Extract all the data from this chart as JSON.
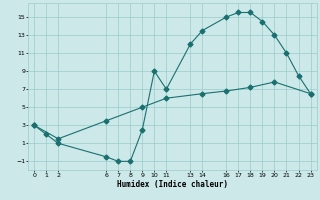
{
  "xlabel": "Humidex (Indice chaleur)",
  "bg_color": "#cce8e8",
  "grid_color": "#99cccc",
  "line_color": "#1a7070",
  "xlim": [
    -0.5,
    23.5
  ],
  "ylim": [
    -2.0,
    16.5
  ],
  "xticks": [
    0,
    1,
    2,
    6,
    7,
    8,
    9,
    10,
    11,
    13,
    14,
    16,
    17,
    18,
    19,
    20,
    21,
    22,
    23
  ],
  "yticks": [
    -1,
    1,
    3,
    5,
    7,
    9,
    11,
    13,
    15
  ],
  "line1_x": [
    0,
    1,
    2,
    6,
    7,
    8,
    9,
    10,
    11,
    13,
    14,
    16,
    17,
    18,
    19,
    20,
    21,
    22,
    23
  ],
  "line1_y": [
    3.0,
    2.0,
    1.0,
    -0.5,
    -1.0,
    -1.0,
    2.5,
    9.0,
    7.0,
    12.0,
    13.5,
    15.0,
    15.5,
    15.5,
    14.5,
    13.0,
    11.0,
    8.5,
    6.5
  ],
  "line2_x": [
    0,
    2,
    6,
    9,
    11,
    14,
    16,
    18,
    20,
    23
  ],
  "line2_y": [
    3.0,
    1.5,
    3.5,
    5.0,
    6.0,
    6.5,
    6.8,
    7.2,
    7.8,
    6.5
  ],
  "marker_size": 2.5,
  "line_width": 0.8
}
